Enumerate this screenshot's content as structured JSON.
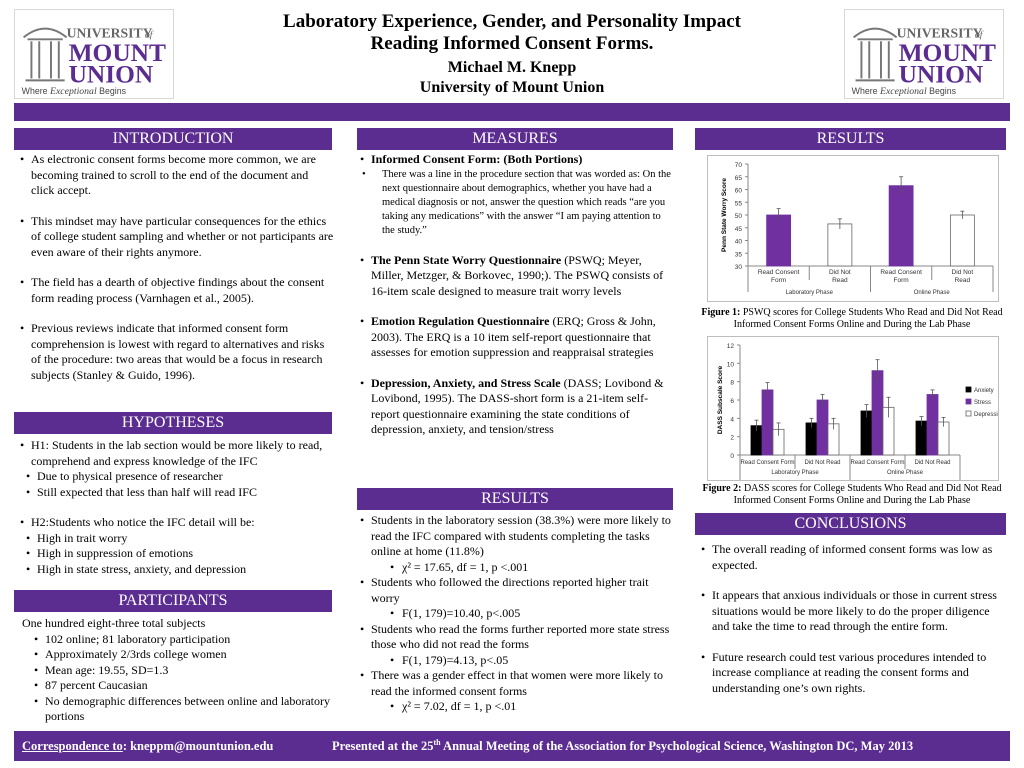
{
  "header": {
    "title_line1": "Laboratory Experience, Gender, and Personality Impact",
    "title_line2": "Reading Informed Consent Forms.",
    "author": "Michael M. Knepp",
    "affiliation": "University of Mount Union",
    "logo": {
      "line1": "UNIVERSITY",
      "of": "of",
      "line2": "MOUNT",
      "line3": "UNION",
      "tagline_a": "Where",
      "tagline_b": "Exceptional",
      "tagline_c": "Begins"
    }
  },
  "introduction": {
    "heading": "INTRODUCTION",
    "items": [
      "As electronic consent forms become more common, we are becoming trained to scroll to the end of the document and  click accept.",
      "This mindset may have particular consequences for the ethics of college student sampling and whether or not participants are even aware of their rights anymore.",
      "The field has a dearth of objective findings about the consent form reading process (Varnhagen et al., 2005).",
      "Previous reviews indicate  that informed consent form comprehension is lowest with regard to alternatives and risks of the procedure: two areas that would be a focus in research subjects (Stanley & Guido, 1996)."
    ]
  },
  "hypotheses": {
    "heading": "HYPOTHESES",
    "h1": "H1: Students in the lab section would be more likely to read, comprehend and express knowledge of the IFC",
    "h1_sub": [
      "Due to physical presence of researcher",
      "Still expected that less than half will read IFC"
    ],
    "h2": "H2:Students who notice the IFC detail will be:",
    "h2_sub": [
      "High in trait worry",
      "High in suppression of emotions",
      "High in state stress, anxiety, and depression"
    ]
  },
  "participants": {
    "heading": "PARTICIPANTS",
    "intro": "One hundred eight-three total subjects",
    "items": [
      "102 online; 81 laboratory participation",
      "Approximately 2/3rds college women",
      "Mean age: 19.55, SD=1.3",
      "87 percent Caucasian",
      "No demographic differences between online and laboratory portions"
    ]
  },
  "measures": {
    "heading": "MEASURES",
    "ifc_title": "Informed Consent Form: (Both Portions)",
    "ifc_sub": "There was a line in the procedure section that was worded as: On the next questionnaire about demographics, whether you have had a medical diagnosis or not, answer the question which reads “are you taking any medications” with the answer “I am paying attention to the study.”",
    "pswq_title": "The Penn State Worry Questionnaire",
    "pswq_text": " (PSWQ; Meyer, Miller, Metzger, & Borkovec, 1990;).  The PSWQ consists of 16-item scale designed to measure trait worry levels",
    "erq_title": "Emotion Regulation Questionnaire",
    "erq_text": " (ERQ; Gross & John, 2003). The ERQ is a 10 item self-report questionnaire that assesses for emotion suppression and reappraisal strategies",
    "dass_title": "Depression, Anxiety, and Stress Scale",
    "dass_text": " (DASS; Lovibond & Lovibond, 1995). The DASS-short form is a 21-item self-report questionnaire examining the state conditions of depression, anxiety, and tension/stress"
  },
  "results_mid": {
    "heading": "RESULTS",
    "items": [
      {
        "text": "Students in the laboratory session (38.3%) were more likely to read the IFC compared with students completing the tasks online at home (11.8%)",
        "stat": "χ² = 17.65, df = 1, p <.001"
      },
      {
        "text": "Students who followed the directions reported higher trait worry",
        "stat": "F(1, 179)=10.40, p<.005"
      },
      {
        "text": "Students who read the forms further reported more state stress those who did not read the forms",
        "stat": "F(1, 179)=4.13, p<.05"
      },
      {
        "text": "There was a gender effect in that women were more likely to read the informed consent forms",
        "stat": "χ² = 7.02, df = 1, p <.01"
      }
    ]
  },
  "results_right": {
    "heading": "RESULTS",
    "fig1_label": "Figure 1:",
    "fig1_caption": " PSWQ scores for College Students Who Read and Did Not Read Informed Consent Forms Online and During the Lab Phase",
    "fig2_label": "Figure 2:",
    "fig2_caption": " DASS scores for College Students Who Read and Did Not Read Informed Consent Forms Online and During the Lab Phase"
  },
  "conclusions": {
    "heading": "CONCLUSIONS",
    "items": [
      "The overall reading of informed consent forms was low as expected.",
      "It appears that anxious individuals or those in current stress situations would be more likely to do the proper diligence and take the time to read through the entire form.",
      "Future research could test various procedures intended to increase compliance at reading the consent forms and understanding one’s own rights."
    ]
  },
  "footer": {
    "corr_label": "Correspondence to",
    "corr_text": ": kneppm@mountunion.edu",
    "pres_a": "Presented at the 25",
    "pres_sup": "th",
    "pres_b": "  Annual Meeting of the Association for Psychological Science, Washington DC, May 2013"
  },
  "chart_data": [
    {
      "type": "bar",
      "ylabel": "Penn State Worry Score",
      "ylim": [
        30,
        70
      ],
      "yticks": [
        30,
        35,
        40,
        45,
        50,
        55,
        60,
        65,
        70
      ],
      "categories": [
        "Read Consent Form",
        "Did Not Read",
        "Read Consent Form",
        "Did Not Read"
      ],
      "groups": [
        "Laboratory Phase",
        "Online Phase"
      ],
      "values": [
        50,
        46.5,
        61.5,
        50
      ],
      "errors": [
        2.5,
        2,
        3.5,
        1.5
      ],
      "colors": [
        "#7030a0",
        "#ffffff",
        "#7030a0",
        "#ffffff"
      ],
      "grid": false
    },
    {
      "type": "bar",
      "ylabel": "DASS Subscale Score",
      "ylim": [
        0,
        12
      ],
      "yticks": [
        0,
        2,
        4,
        6,
        8,
        10,
        12
      ],
      "categories": [
        "Read Consent Form",
        "Did Not Read",
        "Read Consent Form",
        "Did Not Read"
      ],
      "groups": [
        "Laboratory Phase",
        "Online Phase"
      ],
      "series": [
        {
          "name": "Anxiety",
          "color": "#000000",
          "values": [
            3.2,
            3.5,
            4.8,
            3.7
          ],
          "errors": [
            0.6,
            0.5,
            0.7,
            0.5
          ]
        },
        {
          "name": "Stress",
          "color": "#7030a0",
          "values": [
            7.1,
            6.0,
            9.2,
            6.6
          ],
          "errors": [
            0.8,
            0.6,
            1.2,
            0.5
          ]
        },
        {
          "name": "Depression",
          "color": "#ffffff",
          "values": [
            2.8,
            3.4,
            5.2,
            3.6
          ],
          "errors": [
            0.7,
            0.6,
            1.1,
            0.5
          ]
        }
      ],
      "legend": "right",
      "grid": false
    }
  ]
}
